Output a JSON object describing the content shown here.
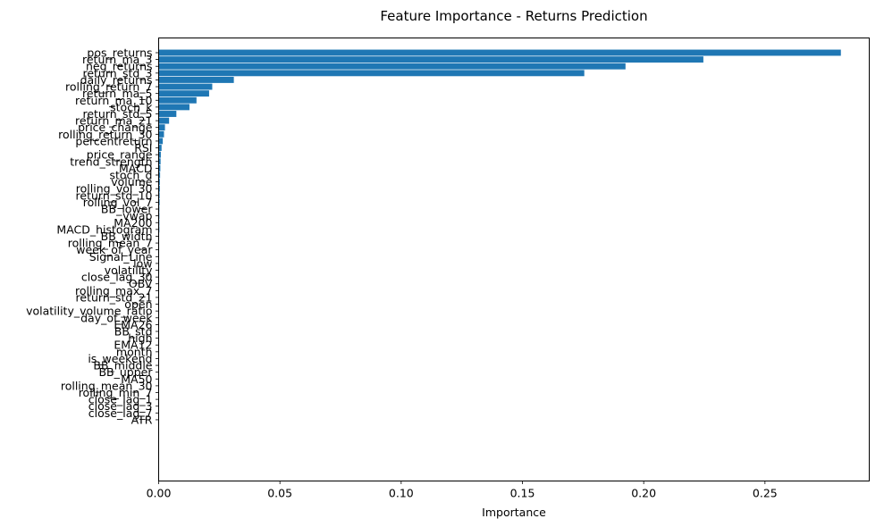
{
  "chart_data": {
    "type": "bar",
    "orientation": "horizontal",
    "title": "Feature Importance - Returns Prediction",
    "xlabel": "Importance",
    "ylabel": "",
    "xlim": [
      0,
      0.293
    ],
    "xticks": [
      0.0,
      0.05,
      0.1,
      0.15,
      0.2,
      0.25
    ],
    "xtick_labels": [
      "0.00",
      "0.05",
      "0.10",
      "0.15",
      "0.20",
      "0.25"
    ],
    "grid": false,
    "bar_color": "#1f77b4",
    "categories": [
      "pos_returns",
      "return_ma_3",
      "neg_returns",
      "return_std_3",
      "daily_returns",
      "rolling_return_7",
      "return_ma_5",
      "return_ma_10",
      "stoch_k",
      "return_std_5",
      "return_ma_21",
      "price_change",
      "rolling_return_30",
      "percentreturn",
      "RSI",
      "price_range",
      "trend_strength",
      "MACD",
      "stoch_d",
      "volume",
      "rolling_vol_30",
      "return_std_10",
      "rolling_vol_7",
      "BB_lower",
      "vwap",
      "MA200",
      "MACD_histogram",
      "BB_width",
      "rolling_mean_7",
      "week_of_year",
      "Signal_Line",
      "low",
      "volatility",
      "close_lag_30",
      "OBV",
      "rolling_max_7",
      "return_std_21",
      "open",
      "volatility_volume_ratio",
      "day_of_week",
      "EMA26",
      "BB_std",
      "high",
      "EMA12",
      "month",
      "is_weekend",
      "BB_middle",
      "BB_upper",
      "MA50",
      "rolling_mean_30",
      "rolling_min_7",
      "close_lag_1",
      "close_lag_3",
      "close_lag_7",
      "ATR"
    ],
    "values": [
      0.2813,
      0.2246,
      0.1925,
      0.1755,
      0.031,
      0.0221,
      0.0208,
      0.0156,
      0.0127,
      0.0073,
      0.0043,
      0.0026,
      0.0022,
      0.0017,
      0.0012,
      0.0009,
      0.0008,
      0.0007,
      0.0006,
      0.0005,
      0.0005,
      0.0004,
      0.0004,
      0.0003,
      0.0003,
      0.0003,
      0.0003,
      0.0002,
      0.0002,
      0.0002,
      0.0002,
      0.0002,
      0.0002,
      0.0001,
      0.0001,
      0.0001,
      0.0001,
      0.0001,
      0.0001,
      0.0001,
      0.0001,
      0.0001,
      0.0001,
      0.0001,
      0.0001,
      0.0001,
      0.0001,
      0.0001,
      0.0001,
      0.0001,
      0.0001,
      0.0,
      0.0,
      0.0,
      0.0
    ]
  }
}
